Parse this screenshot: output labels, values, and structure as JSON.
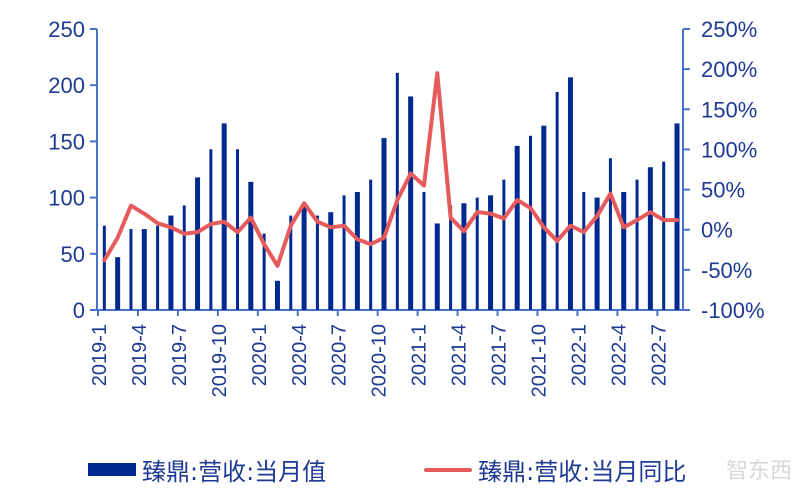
{
  "chart_data": {
    "type": "bar+line",
    "title": "",
    "categories": [
      "2019-1",
      "2019-2",
      "2019-3",
      "2019-4",
      "2019-5",
      "2019-6",
      "2019-7",
      "2019-8",
      "2019-9",
      "2019-10",
      "2019-11",
      "2019-12",
      "2020-1",
      "2020-2",
      "2020-3",
      "2020-4",
      "2020-5",
      "2020-6",
      "2020-7",
      "2020-8",
      "2020-9",
      "2020-10",
      "2020-11",
      "2020-12",
      "2021-1",
      "2021-2",
      "2021-3",
      "2021-4",
      "2021-5",
      "2021-6",
      "2021-7",
      "2021-8",
      "2021-9",
      "2021-10",
      "2021-11",
      "2021-12",
      "2022-1",
      "2022-2",
      "2022-3",
      "2022-4",
      "2022-5",
      "2022-6",
      "2022-7",
      "2022-8"
    ],
    "x_tick_labels": [
      "2019-1",
      "2019-4",
      "2019-7",
      "2019-10",
      "2020-1",
      "2020-4",
      "2020-7",
      "2020-10",
      "2021-1",
      "2021-4",
      "2021-7",
      "2021-10",
      "2022-1",
      "2022-4",
      "2022-7"
    ],
    "series": [
      {
        "name": "臻鼎:营收:当月值",
        "type": "bar",
        "axis": "left",
        "color": "#002a8f",
        "values": [
          75,
          47,
          72,
          72,
          75,
          84,
          93,
          118,
          143,
          166,
          143,
          114,
          68,
          26,
          84,
          93,
          84,
          87,
          102,
          105,
          116,
          153,
          211,
          190,
          105,
          77,
          93,
          95,
          100,
          102,
          116,
          146,
          155,
          164,
          194,
          207,
          105,
          100,
          135,
          105,
          116,
          127,
          132,
          166
        ]
      },
      {
        "name": "臻鼎:营收:当月同比",
        "type": "line",
        "axis": "right",
        "color": "#e55a5a",
        "values": [
          -38,
          -10,
          30,
          20,
          8,
          3,
          -5,
          -3,
          7,
          10,
          -3,
          15,
          -18,
          -45,
          5,
          33,
          10,
          3,
          5,
          -12,
          -18,
          -10,
          37,
          70,
          55,
          195,
          15,
          -2,
          22,
          20,
          14,
          37,
          27,
          3,
          -14,
          5,
          -3,
          17,
          45,
          3,
          12,
          22,
          12,
          12
        ]
      }
    ],
    "y_left": {
      "ticks": [
        "0",
        "50",
        "100",
        "150",
        "200",
        "250"
      ],
      "ylim": [
        0,
        250
      ]
    },
    "y_right": {
      "ticks": [
        "-100%",
        "-50%",
        "0%",
        "50%",
        "100%",
        "150%",
        "200%",
        "250%"
      ],
      "ylim": [
        -100,
        250
      ]
    },
    "legend": {
      "position": "bottom",
      "entries": [
        "臻鼎:营收:当月值",
        "臻鼎:营收:当月同比"
      ]
    },
    "grid": false
  },
  "legend": {
    "bar_label": "臻鼎:营收:当月值",
    "line_label": "臻鼎:营收:当月同比"
  },
  "watermark": "智东西"
}
